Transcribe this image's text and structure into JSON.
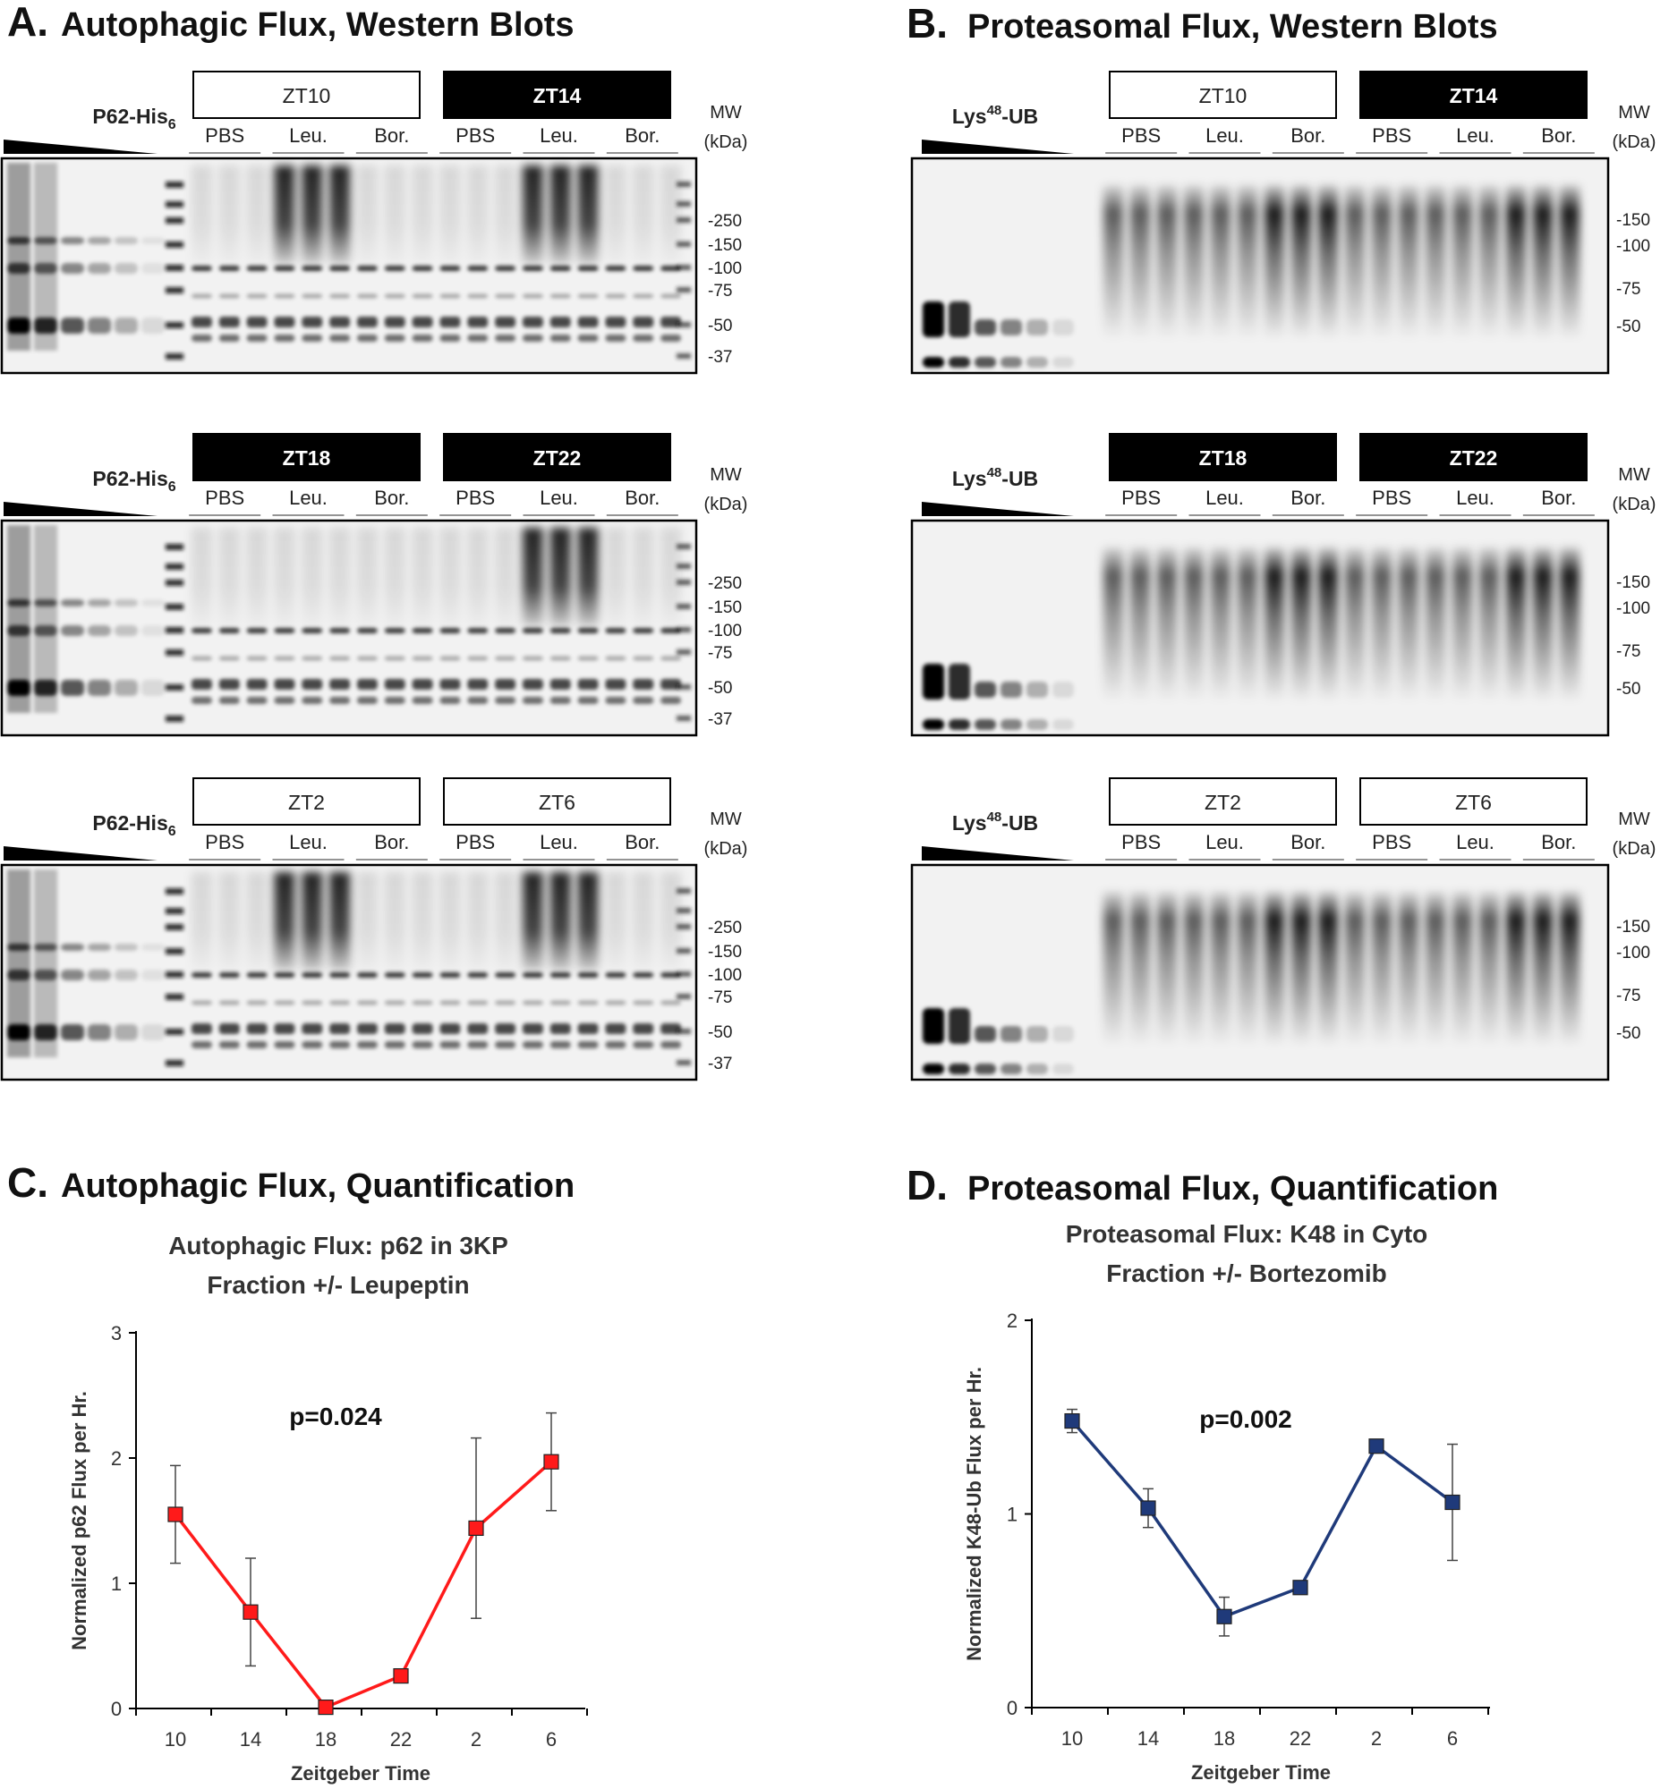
{
  "colors": {
    "panel_c_line": "#ff1a1a",
    "panel_d_line": "#1f3a7a",
    "text": "#111111"
  },
  "panel_a": {
    "letter": "A.",
    "title": "Autophagic Flux, Western Blots",
    "standard_label": "P62-His",
    "standard_sub": "6",
    "treatments": [
      "PBS",
      "Leu.",
      "Bor."
    ],
    "mw_label": "MW",
    "mw_unit": "(kDa)",
    "mw_markers": [
      "-250",
      "-150",
      "-100",
      "-75",
      "-50",
      "-37"
    ],
    "blots": [
      {
        "left": {
          "label": "ZT10",
          "dark": false
        },
        "right": {
          "label": "ZT14",
          "dark": true
        }
      },
      {
        "left": {
          "label": "ZT18",
          "dark": true
        },
        "right": {
          "label": "ZT22",
          "dark": true
        }
      },
      {
        "left": {
          "label": "ZT2",
          "dark": false
        },
        "right": {
          "label": "ZT6",
          "dark": false
        }
      }
    ]
  },
  "panel_b": {
    "letter": "B.",
    "title": "Proteasomal Flux, Western Blots",
    "standard_label": "Lys",
    "standard_sup": "48",
    "standard_suffix": "-UB",
    "treatments": [
      "PBS",
      "Leu.",
      "Bor."
    ],
    "mw_label": "MW",
    "mw_unit": "(kDa)",
    "mw_markers": [
      "-150",
      "-100",
      "-75",
      "-50"
    ],
    "blots": [
      {
        "left": {
          "label": "ZT10",
          "dark": false
        },
        "right": {
          "label": "ZT14",
          "dark": true
        }
      },
      {
        "left": {
          "label": "ZT18",
          "dark": true
        },
        "right": {
          "label": "ZT22",
          "dark": true
        }
      },
      {
        "left": {
          "label": "ZT2",
          "dark": false
        },
        "right": {
          "label": "ZT6",
          "dark": false
        }
      }
    ]
  },
  "panel_c": {
    "letter": "C.",
    "title": "Autophagic Flux, Quantification",
    "pvalue": "p=0.024"
  },
  "panel_d": {
    "letter": "D.",
    "title": "Proteasomal Flux, Quantification",
    "pvalue": "p=0.002"
  },
  "chart_data": [
    {
      "type": "line",
      "title": "Autophagic Flux: p62 in 3KP Fraction +/- Leupeptin",
      "title_lines": [
        "Autophagic Flux: p62 in 3KP",
        "Fraction +/- Leupeptin"
      ],
      "xlabel": "Zeitgeber Time",
      "ylabel": "Normalized p62 Flux per Hr.",
      "categories": [
        "10",
        "14",
        "18",
        "22",
        "2",
        "6"
      ],
      "yticks": [
        "0",
        "1",
        "2",
        "3"
      ],
      "ylim": [
        0,
        3
      ],
      "series": [
        {
          "name": "p62 flux",
          "values": [
            1.55,
            0.77,
            0.01,
            0.26,
            1.44,
            1.97
          ],
          "errors": [
            0.39,
            0.43,
            0.0,
            0.0,
            0.72,
            0.39
          ]
        }
      ],
      "annotation": "p=0.024"
    },
    {
      "type": "line",
      "title": "Proteasomal Flux: K48 in Cyto Fraction +/- Bortezomib",
      "title_lines": [
        "Proteasomal Flux: K48 in Cyto",
        "Fraction +/- Bortezomib"
      ],
      "xlabel": "Zeitgeber Time",
      "ylabel": "Normalized K48-Ub Flux per Hr.",
      "categories": [
        "10",
        "14",
        "18",
        "22",
        "2",
        "6"
      ],
      "yticks": [
        "0",
        "1",
        "2"
      ],
      "ylim": [
        0,
        2
      ],
      "series": [
        {
          "name": "K48-Ub flux",
          "values": [
            1.48,
            1.03,
            0.47,
            0.62,
            1.35,
            1.06
          ],
          "errors": [
            0.06,
            0.1,
            0.1,
            0.0,
            0.0,
            0.3
          ]
        }
      ],
      "annotation": "p=0.002"
    }
  ]
}
